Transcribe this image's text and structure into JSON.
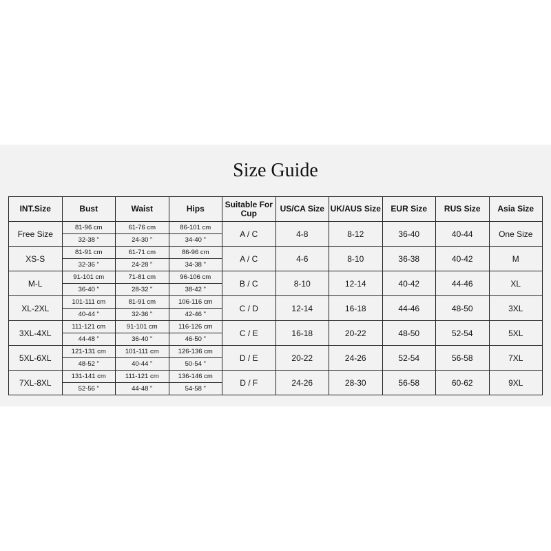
{
  "title": "Size Guide",
  "headers": [
    "INT.Size",
    "Bust",
    "Waist",
    "Hips",
    "Suitable For Cup",
    "US/CA Size",
    "UK/AUS Size",
    "EUR Size",
    "RUS Size",
    "Asia Size"
  ],
  "rows": [
    {
      "int": "Free Size",
      "bust": [
        "81-96 cm",
        "32-38 \""
      ],
      "waist": [
        "61-76 cm",
        "24-30 \""
      ],
      "hips": [
        "86-101 cm",
        "34-40 \""
      ],
      "cup": "A / C",
      "us": "4-8",
      "uk": "8-12",
      "eur": "36-40",
      "rus": "40-44",
      "asia": "One Size"
    },
    {
      "int": "XS-S",
      "bust": [
        "81-91 cm",
        "32-36 \""
      ],
      "waist": [
        "61-71 cm",
        "24-28 \""
      ],
      "hips": [
        "86-96 cm",
        "34-38 \""
      ],
      "cup": "A / C",
      "us": "4-6",
      "uk": "8-10",
      "eur": "36-38",
      "rus": "40-42",
      "asia": "M"
    },
    {
      "int": "M-L",
      "bust": [
        "91-101 cm",
        "36-40 \""
      ],
      "waist": [
        "71-81 cm",
        "28-32 \""
      ],
      "hips": [
        "96-106 cm",
        "38-42 \""
      ],
      "cup": "B / C",
      "us": "8-10",
      "uk": "12-14",
      "eur": "40-42",
      "rus": "44-46",
      "asia": "XL"
    },
    {
      "int": "XL-2XL",
      "bust": [
        "101-111 cm",
        "40-44 \""
      ],
      "waist": [
        "81-91 cm",
        "32-36 \""
      ],
      "hips": [
        "106-116 cm",
        "42-46 \""
      ],
      "cup": "C / D",
      "us": "12-14",
      "uk": "16-18",
      "eur": "44-46",
      "rus": "48-50",
      "asia": "3XL"
    },
    {
      "int": "3XL-4XL",
      "bust": [
        "111-121 cm",
        "44-48 \""
      ],
      "waist": [
        "91-101 cm",
        "36-40 \""
      ],
      "hips": [
        "116-126 cm",
        "46-50 \""
      ],
      "cup": "C / E",
      "us": "16-18",
      "uk": "20-22",
      "eur": "48-50",
      "rus": "52-54",
      "asia": "5XL"
    },
    {
      "int": "5XL-6XL",
      "bust": [
        "121-131 cm",
        "48-52 \""
      ],
      "waist": [
        "101-111 cm",
        "40-44 \""
      ],
      "hips": [
        "126-136 cm",
        "50-54 \""
      ],
      "cup": "D / E",
      "us": "20-22",
      "uk": "24-26",
      "eur": "52-54",
      "rus": "56-58",
      "asia": "7XL"
    },
    {
      "int": "7XL-8XL",
      "bust": [
        "131-141 cm",
        "52-56 \""
      ],
      "waist": [
        "111-121 cm",
        "44-48 \""
      ],
      "hips": [
        "136-146 cm",
        "54-58 \""
      ],
      "cup": "D / F",
      "us": "24-26",
      "uk": "28-30",
      "eur": "56-58",
      "rus": "60-62",
      "asia": "9XL"
    }
  ]
}
